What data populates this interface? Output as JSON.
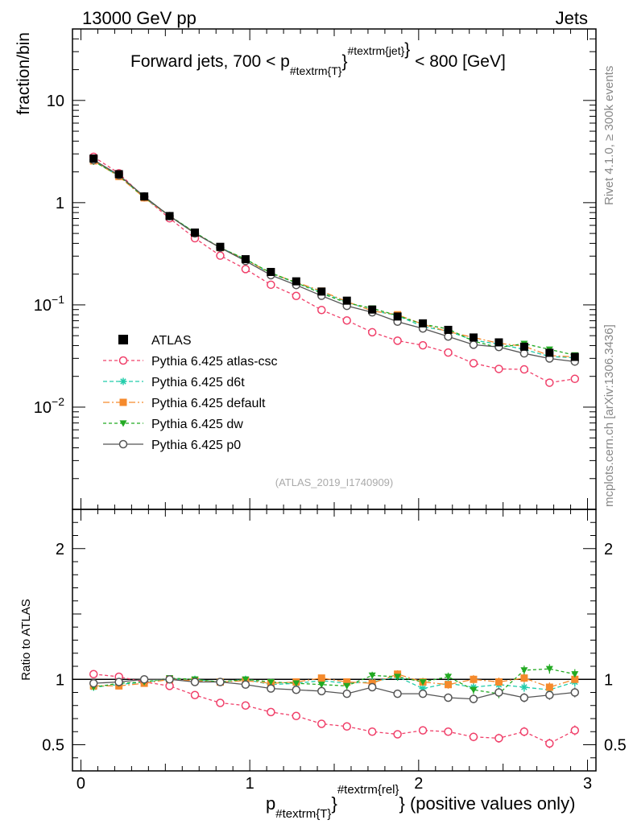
{
  "header": {
    "left": "13000 GeV pp",
    "right": "Jets"
  },
  "side": {
    "rivet": "Rivet 4.1.0, ≥ 300k events",
    "mcplots": "mcplots.cern.ch [arXiv:1306.3436]"
  },
  "chart_data": {
    "type": "line",
    "title_main": "Forward jets, 700 < p",
    "title_sub": "#textrm{T}",
    "title_sup": "#textrm{jet}",
    "title_end": " < 800 [GeV]",
    "watermark": "(ATLAS_2019_I1740909)",
    "ylabel": "fraction/bin",
    "ratio_ylabel": "Ratio to ATLAS",
    "xlabel_main": "p",
    "xlabel_sub": "#textrm{T}",
    "xlabel_sup": "#textrm{rel}",
    "xlabel_end": "} (positive values only)",
    "xlim": [
      -0.05,
      3.05
    ],
    "ylim": [
      0.001,
      50
    ],
    "ratio_ylim": [
      0.3,
      2.3
    ],
    "x_ticks": [
      "0",
      "1",
      "2",
      "3"
    ],
    "y_ticks_main": [
      {
        "value": 10,
        "base": "10",
        "exp": ""
      },
      {
        "value": 1,
        "base": "1",
        "exp": ""
      },
      {
        "value": 0.1,
        "base": "10",
        "exp": "−1"
      },
      {
        "value": 0.01,
        "base": "10",
        "exp": "−2"
      }
    ],
    "y_ticks_ratio": [
      "0.5",
      "1",
      "2"
    ],
    "x": [
      0.075,
      0.225,
      0.375,
      0.525,
      0.675,
      0.825,
      0.975,
      1.125,
      1.275,
      1.425,
      1.575,
      1.725,
      1.875,
      2.025,
      2.175,
      2.325,
      2.475,
      2.625,
      2.775,
      2.925
    ],
    "data": {
      "name": "ATLAS",
      "values": [
        2.7,
        1.9,
        1.15,
        0.74,
        0.51,
        0.37,
        0.28,
        0.21,
        0.17,
        0.135,
        0.11,
        0.09,
        0.077,
        0.066,
        0.057,
        0.048,
        0.043,
        0.039,
        0.034,
        0.031
      ]
    },
    "series": [
      {
        "name": "Pythia 6.425 atlas-csc",
        "color": "#f0406a",
        "marker": "circle-open",
        "dash": "4,3",
        "ratio": [
          1.04,
          1.02,
          0.98,
          0.95,
          0.88,
          0.82,
          0.8,
          0.75,
          0.72,
          0.66,
          0.64,
          0.6,
          0.58,
          0.61,
          0.6,
          0.56,
          0.55,
          0.6,
          0.51,
          0.61
        ]
      },
      {
        "name": "Pythia 6.425 d6t",
        "color": "#22ccaa",
        "marker": "star",
        "dash": "5,3",
        "ratio": [
          0.94,
          0.96,
          0.98,
          1.0,
          1.0,
          0.98,
          1.0,
          0.96,
          0.97,
          0.99,
          0.97,
          0.98,
          1.02,
          0.93,
          0.97,
          0.94,
          0.96,
          0.94,
          0.92,
          0.98
        ]
      },
      {
        "name": "Pythia 6.425 default",
        "color": "#f58a2c",
        "marker": "square",
        "dash": "8,3,2,3",
        "ratio": [
          0.95,
          0.95,
          0.97,
          1.0,
          0.99,
          0.98,
          0.99,
          0.97,
          0.98,
          1.01,
          0.98,
          0.97,
          1.04,
          0.98,
          0.96,
          1.0,
          0.98,
          1.01,
          0.94,
          1.0
        ]
      },
      {
        "name": "Pythia 6.425 dw",
        "color": "#22aa22",
        "marker": "triangle-down",
        "dash": "4,3",
        "ratio": [
          0.94,
          0.97,
          0.98,
          1.01,
          1.0,
          0.98,
          1.0,
          0.98,
          0.97,
          0.96,
          0.95,
          1.03,
          1.02,
          0.98,
          1.02,
          0.92,
          0.89,
          1.07,
          1.08,
          1.04
        ]
      },
      {
        "name": "Pythia 6.425 p0",
        "color": "#555555",
        "marker": "circle-open",
        "dash": "",
        "ratio": [
          0.97,
          0.98,
          1.0,
          1.0,
          0.98,
          0.98,
          0.96,
          0.93,
          0.92,
          0.91,
          0.89,
          0.94,
          0.89,
          0.89,
          0.86,
          0.85,
          0.9,
          0.86,
          0.88,
          0.9
        ]
      }
    ]
  }
}
